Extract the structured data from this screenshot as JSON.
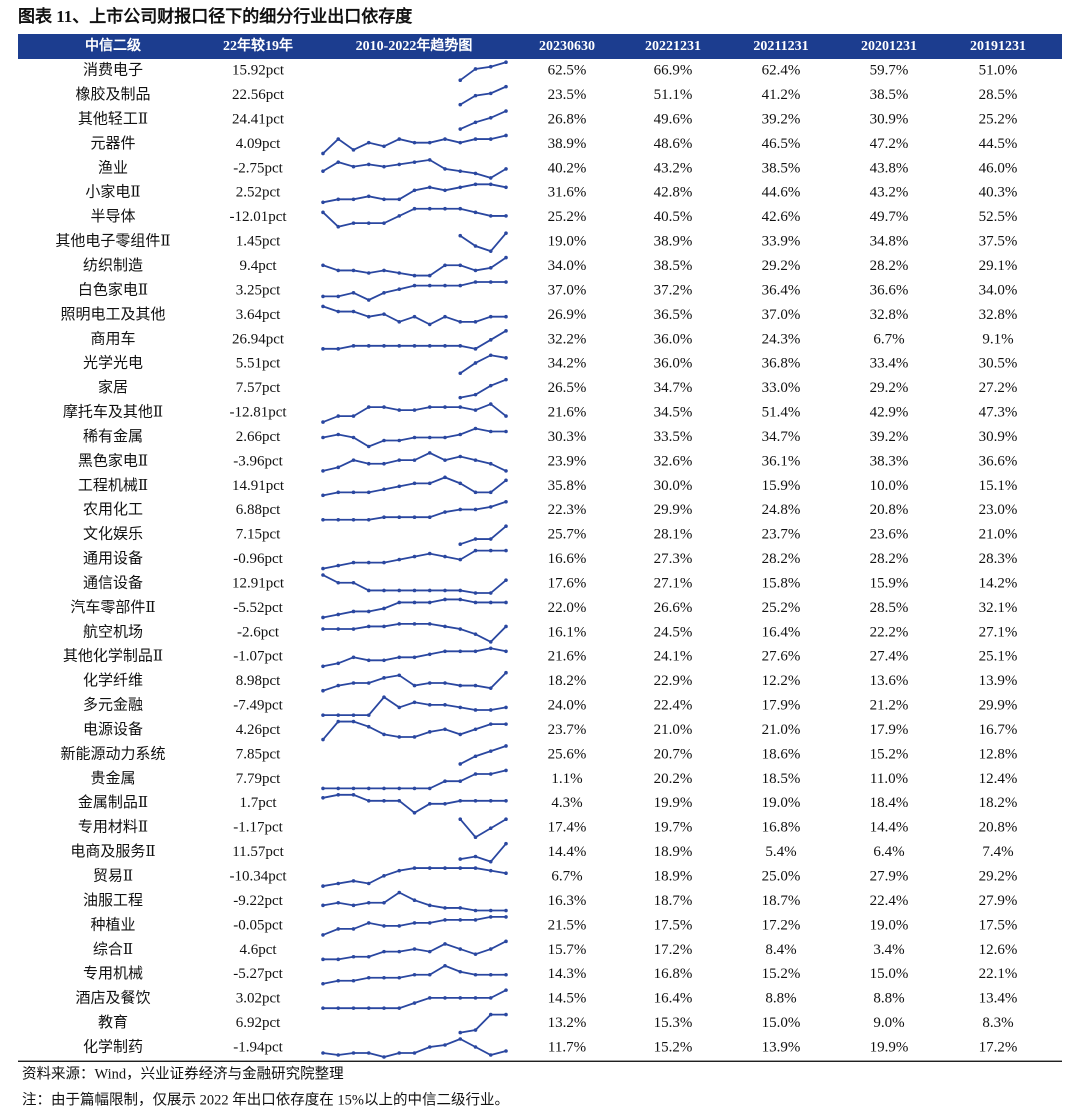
{
  "title": "图表 11、上市公司财报口径下的细分行业出口依存度",
  "table": {
    "header": [
      "中信二级",
      "22年较19年",
      "2010-2022年趋势图",
      "20230630",
      "20221231",
      "20211231",
      "20201231",
      "20191231"
    ],
    "rows": [
      {
        "cells": [
          "消费电子",
          "15.92pct",
          "62.5%",
          "66.9%",
          "62.4%",
          "59.7%",
          "51.0%"
        ],
        "trend": [
          null,
          null,
          null,
          null,
          null,
          null,
          null,
          null,
          null,
          2,
          7,
          8,
          10
        ]
      },
      {
        "cells": [
          "橡胶及制品",
          "22.56pct",
          "23.5%",
          "51.1%",
          "41.2%",
          "38.5%",
          "28.5%"
        ],
        "trend": [
          null,
          null,
          null,
          null,
          null,
          null,
          null,
          null,
          null,
          2,
          6,
          7,
          10
        ]
      },
      {
        "cells": [
          "其他轻工Ⅱ",
          "24.41pct",
          "26.8%",
          "49.6%",
          "39.2%",
          "30.9%",
          "25.2%"
        ],
        "trend": [
          null,
          null,
          null,
          null,
          null,
          null,
          null,
          null,
          null,
          2,
          5,
          7,
          10
        ]
      },
      {
        "cells": [
          "元器件",
          "4.09pct",
          "38.9%",
          "48.6%",
          "46.5%",
          "47.2%",
          "44.5%"
        ],
        "trend": [
          2,
          6,
          3,
          5,
          4,
          6,
          5,
          5,
          6,
          5,
          6,
          6,
          7
        ]
      },
      {
        "cells": [
          "渔业",
          "-2.75pct",
          "40.2%",
          "43.2%",
          "38.5%",
          "43.8%",
          "46.0%"
        ],
        "trend": [
          4,
          8,
          6,
          7,
          6,
          7,
          8,
          9,
          5,
          4,
          3,
          1,
          5
        ]
      },
      {
        "cells": [
          "小家电Ⅱ",
          "2.52pct",
          "31.6%",
          "42.8%",
          "44.6%",
          "43.2%",
          "40.3%"
        ],
        "trend": [
          3,
          4,
          4,
          5,
          4,
          4,
          7,
          8,
          7,
          8,
          9,
          9,
          8
        ]
      },
      {
        "cells": [
          "半导体",
          "-12.01pct",
          "25.2%",
          "40.5%",
          "42.6%",
          "49.7%",
          "52.5%"
        ],
        "trend": [
          8,
          4,
          5,
          5,
          5,
          7,
          9,
          9,
          9,
          9,
          8,
          7,
          7
        ]
      },
      {
        "cells": [
          "其他电子零组件Ⅱ",
          "1.45pct",
          "19.0%",
          "38.9%",
          "33.9%",
          "34.8%",
          "37.5%"
        ],
        "trend": [
          null,
          null,
          null,
          null,
          null,
          null,
          null,
          null,
          null,
          8,
          4,
          2,
          9
        ]
      },
      {
        "cells": [
          "纺织制造",
          "9.4pct",
          "34.0%",
          "38.5%",
          "29.2%",
          "28.2%",
          "29.1%"
        ],
        "trend": [
          6,
          4,
          4,
          3,
          4,
          3,
          2,
          2,
          6,
          6,
          4,
          5,
          9
        ]
      },
      {
        "cells": [
          "白色家电Ⅱ",
          "3.25pct",
          "37.0%",
          "37.2%",
          "36.4%",
          "36.6%",
          "34.0%"
        ],
        "trend": [
          2,
          2,
          3,
          1,
          3,
          4,
          5,
          5,
          5,
          5,
          6,
          6,
          6
        ]
      },
      {
        "cells": [
          "照明电工及其他",
          "3.64pct",
          "26.9%",
          "36.5%",
          "37.0%",
          "32.8%",
          "32.8%"
        ],
        "trend": [
          9,
          7,
          7,
          5,
          6,
          3,
          5,
          2,
          5,
          3,
          3,
          5,
          5
        ]
      },
      {
        "cells": [
          "商用车",
          "26.94pct",
          "32.2%",
          "36.0%",
          "24.3%",
          "6.7%",
          "9.1%"
        ],
        "trend": [
          3,
          3,
          4,
          4,
          4,
          4,
          4,
          4,
          4,
          4,
          3,
          6,
          9
        ]
      },
      {
        "cells": [
          "光学光电",
          "5.51pct",
          "34.2%",
          "36.0%",
          "36.8%",
          "33.4%",
          "30.5%"
        ],
        "trend": [
          null,
          null,
          null,
          null,
          null,
          null,
          null,
          null,
          null,
          2,
          6,
          9,
          8
        ]
      },
      {
        "cells": [
          "家居",
          "7.57pct",
          "26.5%",
          "34.7%",
          "33.0%",
          "29.2%",
          "27.2%"
        ],
        "trend": [
          null,
          null,
          null,
          null,
          null,
          null,
          null,
          null,
          null,
          2,
          3,
          6,
          8
        ]
      },
      {
        "cells": [
          "摩托车及其他Ⅱ",
          "-12.81pct",
          "21.6%",
          "34.5%",
          "51.4%",
          "42.9%",
          "47.3%"
        ],
        "trend": [
          2,
          4,
          4,
          7,
          7,
          6,
          6,
          7,
          7,
          7,
          6,
          8,
          4
        ]
      },
      {
        "cells": [
          "稀有金属",
          "2.66pct",
          "30.3%",
          "33.5%",
          "34.7%",
          "39.2%",
          "30.9%"
        ],
        "trend": [
          5,
          6,
          5,
          2,
          4,
          4,
          5,
          5,
          5,
          6,
          8,
          7,
          7
        ]
      },
      {
        "cells": [
          "黑色家电Ⅱ",
          "-3.96pct",
          "23.9%",
          "32.6%",
          "36.1%",
          "38.3%",
          "36.6%"
        ],
        "trend": [
          3,
          4,
          6,
          5,
          5,
          6,
          6,
          8,
          6,
          7,
          6,
          5,
          3
        ]
      },
      {
        "cells": [
          "工程机械Ⅱ",
          "14.91pct",
          "35.8%",
          "30.0%",
          "15.9%",
          "10.0%",
          "15.1%"
        ],
        "trend": [
          2,
          3,
          3,
          3,
          4,
          5,
          6,
          6,
          8,
          6,
          3,
          3,
          7
        ]
      },
      {
        "cells": [
          "农用化工",
          "6.88pct",
          "22.3%",
          "29.9%",
          "24.8%",
          "20.8%",
          "23.0%"
        ],
        "trend": [
          2,
          2,
          2,
          2,
          3,
          3,
          3,
          3,
          5,
          6,
          6,
          7,
          9
        ]
      },
      {
        "cells": [
          "文化娱乐",
          "7.15pct",
          "25.7%",
          "28.1%",
          "23.7%",
          "23.6%",
          "21.0%"
        ],
        "trend": [
          null,
          null,
          null,
          null,
          null,
          null,
          null,
          null,
          null,
          2,
          4,
          4,
          9
        ]
      },
      {
        "cells": [
          "通用设备",
          "-0.96pct",
          "16.6%",
          "27.3%",
          "28.2%",
          "28.2%",
          "28.3%"
        ],
        "trend": [
          2,
          3,
          4,
          4,
          4,
          5,
          6,
          7,
          6,
          5,
          8,
          8,
          8
        ]
      },
      {
        "cells": [
          "通信设备",
          "12.91pct",
          "17.6%",
          "27.1%",
          "15.8%",
          "15.9%",
          "14.2%"
        ],
        "trend": [
          8,
          5,
          5,
          2,
          2,
          2,
          2,
          2,
          2,
          2,
          1,
          1,
          6
        ]
      },
      {
        "cells": [
          "汽车零部件Ⅱ",
          "-5.52pct",
          "22.0%",
          "26.6%",
          "25.2%",
          "28.5%",
          "32.1%"
        ],
        "trend": [
          2,
          3,
          4,
          4,
          5,
          7,
          7,
          7,
          8,
          8,
          7,
          7,
          7
        ]
      },
      {
        "cells": [
          "航空机场",
          "-2.6pct",
          "16.1%",
          "24.5%",
          "16.4%",
          "22.2%",
          "27.1%"
        ],
        "trend": [
          6,
          6,
          6,
          7,
          7,
          8,
          8,
          8,
          7,
          6,
          4,
          1,
          7
        ]
      },
      {
        "cells": [
          "其他化学制品Ⅱ",
          "-1.07pct",
          "21.6%",
          "24.1%",
          "27.6%",
          "27.4%",
          "25.1%"
        ],
        "trend": [
          2,
          3,
          5,
          4,
          4,
          5,
          5,
          6,
          7,
          7,
          7,
          8,
          7
        ]
      },
      {
        "cells": [
          "化学纤维",
          "8.98pct",
          "18.2%",
          "22.9%",
          "12.2%",
          "13.6%",
          "13.9%"
        ],
        "trend": [
          2,
          4,
          5,
          5,
          7,
          8,
          4,
          5,
          5,
          4,
          4,
          3,
          9
        ]
      },
      {
        "cells": [
          "多元金融",
          "-7.49pct",
          "24.0%",
          "22.4%",
          "17.9%",
          "21.2%",
          "29.9%"
        ],
        "trend": [
          2,
          2,
          2,
          2,
          9,
          5,
          7,
          6,
          6,
          5,
          4,
          4,
          5
        ]
      },
      {
        "cells": [
          "电源设备",
          "4.26pct",
          "23.7%",
          "21.0%",
          "21.0%",
          "17.9%",
          "16.7%"
        ],
        "trend": [
          2,
          9,
          9,
          7,
          4,
          3,
          3,
          5,
          6,
          4,
          6,
          8,
          8
        ]
      },
      {
        "cells": [
          "新能源动力系统",
          "7.85pct",
          "25.6%",
          "20.7%",
          "18.6%",
          "15.2%",
          "12.8%"
        ],
        "trend": [
          null,
          null,
          null,
          null,
          null,
          null,
          null,
          null,
          null,
          2,
          5,
          7,
          9
        ]
      },
      {
        "cells": [
          "贵金属",
          "7.79pct",
          "1.1%",
          "20.2%",
          "18.5%",
          "11.0%",
          "12.4%"
        ],
        "trend": [
          2,
          2,
          2,
          2,
          2,
          2,
          2,
          2,
          4,
          4,
          6,
          6,
          7
        ]
      },
      {
        "cells": [
          "金属制品Ⅱ",
          "1.7pct",
          "4.3%",
          "19.9%",
          "19.0%",
          "18.4%",
          "18.2%"
        ],
        "trend": [
          7,
          8,
          8,
          6,
          6,
          6,
          2,
          5,
          5,
          6,
          6,
          6,
          6
        ]
      },
      {
        "cells": [
          "专用材料Ⅱ",
          "-1.17pct",
          "17.4%",
          "19.7%",
          "16.8%",
          "14.4%",
          "20.8%"
        ],
        "trend": [
          null,
          null,
          null,
          null,
          null,
          null,
          null,
          null,
          null,
          8,
          2,
          5,
          8
        ]
      },
      {
        "cells": [
          "电商及服务Ⅱ",
          "11.57pct",
          "14.4%",
          "18.9%",
          "5.4%",
          "6.4%",
          "7.4%"
        ],
        "trend": [
          null,
          null,
          null,
          null,
          null,
          null,
          null,
          null,
          null,
          3,
          4,
          2,
          9
        ]
      },
      {
        "cells": [
          "贸易Ⅱ",
          "-10.34pct",
          "6.7%",
          "18.9%",
          "25.0%",
          "27.9%",
          "29.2%"
        ],
        "trend": [
          2,
          3,
          4,
          3,
          6,
          8,
          9,
          9,
          9,
          9,
          9,
          8,
          7
        ]
      },
      {
        "cells": [
          "油服工程",
          "-9.22pct",
          "16.3%",
          "18.7%",
          "18.7%",
          "22.4%",
          "27.9%"
        ],
        "trend": [
          4,
          5,
          4,
          5,
          5,
          9,
          6,
          4,
          3,
          3,
          2,
          2,
          2
        ]
      },
      {
        "cells": [
          "种植业",
          "-0.05pct",
          "21.5%",
          "17.5%",
          "17.2%",
          "19.0%",
          "17.5%"
        ],
        "trend": [
          2,
          4,
          4,
          6,
          5,
          5,
          6,
          6,
          7,
          7,
          7,
          8,
          8
        ]
      },
      {
        "cells": [
          "综合Ⅱ",
          "4.6pct",
          "15.7%",
          "17.2%",
          "8.4%",
          "3.4%",
          "12.6%"
        ],
        "trend": [
          2,
          2,
          3,
          3,
          5,
          5,
          6,
          5,
          8,
          6,
          4,
          6,
          9
        ]
      },
      {
        "cells": [
          "专用机械",
          "-5.27pct",
          "14.3%",
          "16.8%",
          "15.2%",
          "15.0%",
          "22.1%"
        ],
        "trend": [
          3,
          4,
          4,
          5,
          5,
          5,
          6,
          6,
          9,
          7,
          6,
          6,
          6
        ]
      },
      {
        "cells": [
          "酒店及餐饮",
          "3.02pct",
          "14.5%",
          "16.4%",
          "8.8%",
          "8.8%",
          "13.4%"
        ],
        "trend": [
          2,
          2,
          2,
          2,
          2,
          2,
          4,
          6,
          6,
          6,
          6,
          6,
          9
        ]
      },
      {
        "cells": [
          "教育",
          "6.92pct",
          "13.2%",
          "15.3%",
          "15.0%",
          "9.0%",
          "8.3%"
        ],
        "trend": [
          null,
          null,
          null,
          null,
          null,
          null,
          null,
          null,
          null,
          2,
          3,
          9,
          9
        ]
      },
      {
        "cells": [
          "化学制药",
          "-1.94pct",
          "11.7%",
          "15.2%",
          "13.9%",
          "19.9%",
          "17.2%"
        ],
        "trend": [
          2,
          1,
          2,
          2,
          0,
          2,
          2,
          5,
          6,
          9,
          5,
          1,
          3
        ]
      }
    ]
  },
  "notes": [
    "资料来源：Wind，兴业证券经济与金融研究院整理",
    "注：由于篇幅限制，仅展示 2022 年出口依存度在 15%以上的中信二级行业。"
  ]
}
